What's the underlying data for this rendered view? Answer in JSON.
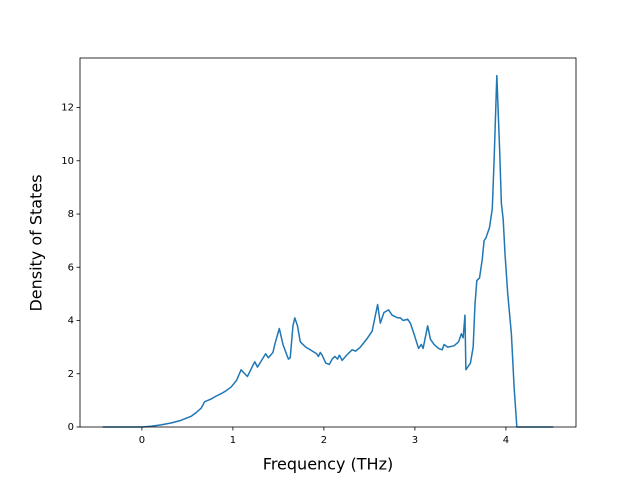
{
  "chart_data": {
    "type": "line",
    "xlabel": "Frequency (THz)",
    "ylabel": "Density of States",
    "x": [
      -0.43,
      0,
      0.1,
      0.21,
      0.32,
      0.43,
      0.54,
      0.6,
      0.65,
      0.69,
      0.76,
      0.81,
      0.87,
      0.92,
      0.98,
      1.04,
      1.09,
      1.13,
      1.16,
      1.24,
      1.27,
      1.36,
      1.39,
      1.44,
      1.46,
      1.51,
      1.55,
      1.61,
      1.63,
      1.66,
      1.68,
      1.71,
      1.74,
      1.8,
      1.85,
      1.92,
      1.94,
      1.96,
      1.98,
      2.02,
      2.06,
      2.09,
      2.12,
      2.15,
      2.17,
      2.2,
      2.25,
      2.31,
      2.35,
      2.4,
      2.47,
      2.53,
      2.59,
      2.62,
      2.66,
      2.71,
      2.75,
      2.81,
      2.84,
      2.87,
      2.92,
      2.95,
      2.99,
      3.04,
      3.07,
      3.09,
      3.14,
      3.17,
      3.21,
      3.26,
      3.3,
      3.32,
      3.36,
      3.43,
      3.48,
      3.51,
      3.53,
      3.55,
      3.56,
      3.61,
      3.64,
      3.66,
      3.68,
      3.71,
      3.74,
      3.76,
      3.78,
      3.82,
      3.85,
      3.87,
      3.9,
      3.93,
      3.95,
      3.97,
      3.99,
      4.02,
      4.06,
      4.09,
      4.12,
      4.52
    ],
    "series": [
      {
        "color": "#1f77b4",
        "values": [
          0,
          0,
          0.03,
          0.08,
          0.15,
          0.25,
          0.4,
          0.55,
          0.7,
          0.95,
          1.05,
          1.15,
          1.25,
          1.35,
          1.5,
          1.75,
          2.15,
          2.0,
          1.9,
          2.45,
          2.25,
          2.75,
          2.6,
          2.8,
          3.1,
          3.7,
          3.1,
          2.55,
          2.6,
          3.8,
          4.1,
          3.8,
          3.2,
          3.0,
          2.9,
          2.75,
          2.65,
          2.8,
          2.7,
          2.4,
          2.35,
          2.55,
          2.65,
          2.55,
          2.7,
          2.5,
          2.7,
          2.9,
          2.85,
          3.0,
          3.3,
          3.6,
          4.6,
          3.9,
          4.3,
          4.4,
          4.2,
          4.1,
          4.1,
          4.0,
          4.05,
          3.9,
          3.5,
          2.95,
          3.1,
          2.95,
          3.8,
          3.3,
          3.1,
          2.95,
          2.9,
          3.1,
          3.0,
          3.05,
          3.2,
          3.5,
          3.35,
          4.2,
          2.15,
          2.4,
          3.0,
          4.6,
          5.5,
          5.6,
          6.3,
          7.0,
          7.1,
          7.5,
          8.2,
          10,
          13.2,
          10.5,
          8.4,
          7.8,
          6.5,
          5.0,
          3.5,
          1.5,
          0,
          0
        ]
      }
    ],
    "xlim": [
      -0.68,
      4.77
    ],
    "ylim": [
      0,
      13.86
    ],
    "xticks": [
      0,
      1,
      2,
      3,
      4
    ],
    "yticks": [
      0,
      2,
      4,
      6,
      8,
      10,
      12
    ]
  }
}
